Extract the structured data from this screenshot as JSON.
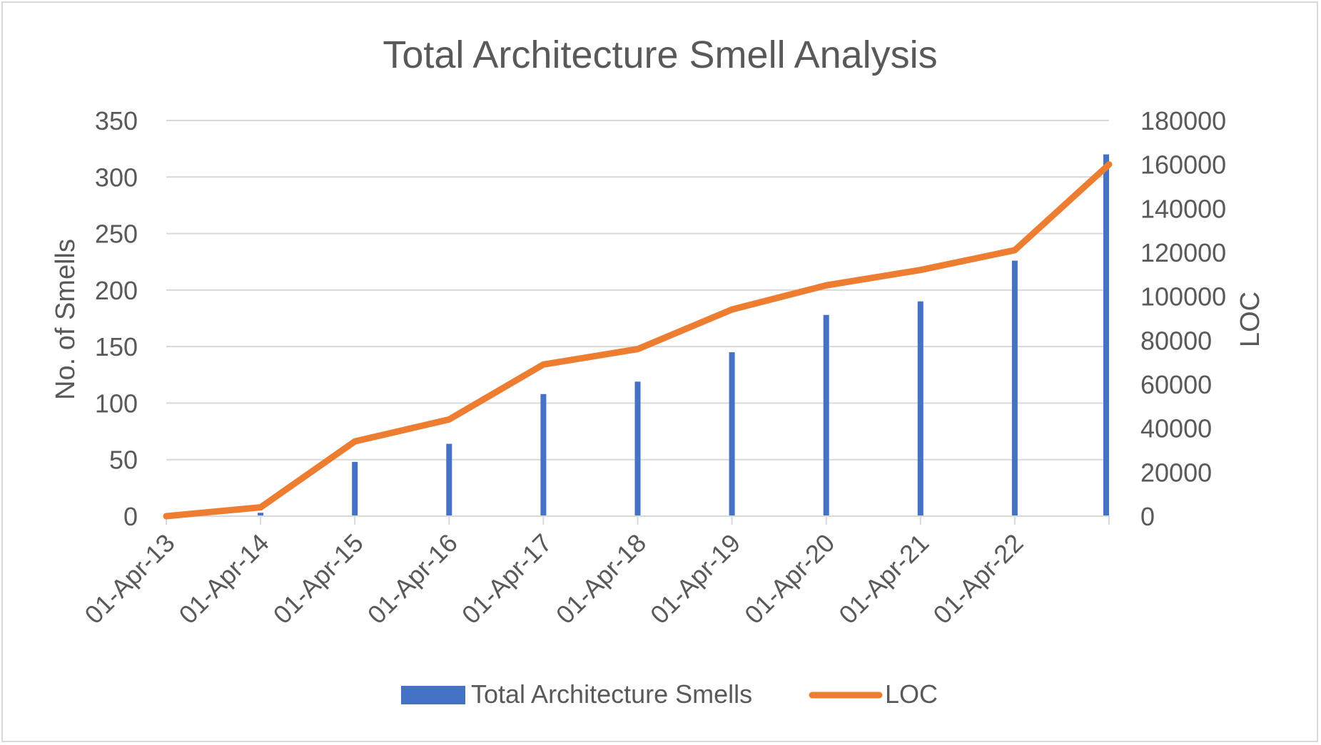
{
  "chart_data": {
    "type": "bar",
    "title": "Total Architecture Smell Analysis",
    "categories": [
      "01-Apr-13",
      "01-Apr-14",
      "01-Apr-15",
      "01-Apr-16",
      "01-Apr-17",
      "01-Apr-18",
      "01-Apr-19",
      "01-Apr-20",
      "01-Apr-21",
      "01-Apr-22",
      ""
    ],
    "series": [
      {
        "name": "Total Architecture Smells",
        "type": "bar",
        "axis": "left",
        "color": "#4472c4",
        "values": [
          0,
          3,
          48,
          64,
          108,
          119,
          145,
          178,
          190,
          226,
          320
        ]
      },
      {
        "name": "LOC",
        "type": "line",
        "axis": "right",
        "color": "#ed7d31",
        "values": [
          0,
          4000,
          34000,
          44000,
          69000,
          76000,
          94000,
          105000,
          112000,
          121000,
          160000
        ]
      }
    ],
    "ylabel": "No. of Smells",
    "y2label": "LOC",
    "ylim": [
      0,
      350
    ],
    "y2lim": [
      0,
      180000
    ],
    "yticks": [
      "0",
      "50",
      "100",
      "150",
      "200",
      "250",
      "300",
      "350"
    ],
    "y2ticks": [
      "0",
      "20000",
      "40000",
      "60000",
      "80000",
      "100000",
      "120000",
      "140000",
      "160000",
      "180000"
    ],
    "grid": true,
    "legend_position": "bottom"
  }
}
